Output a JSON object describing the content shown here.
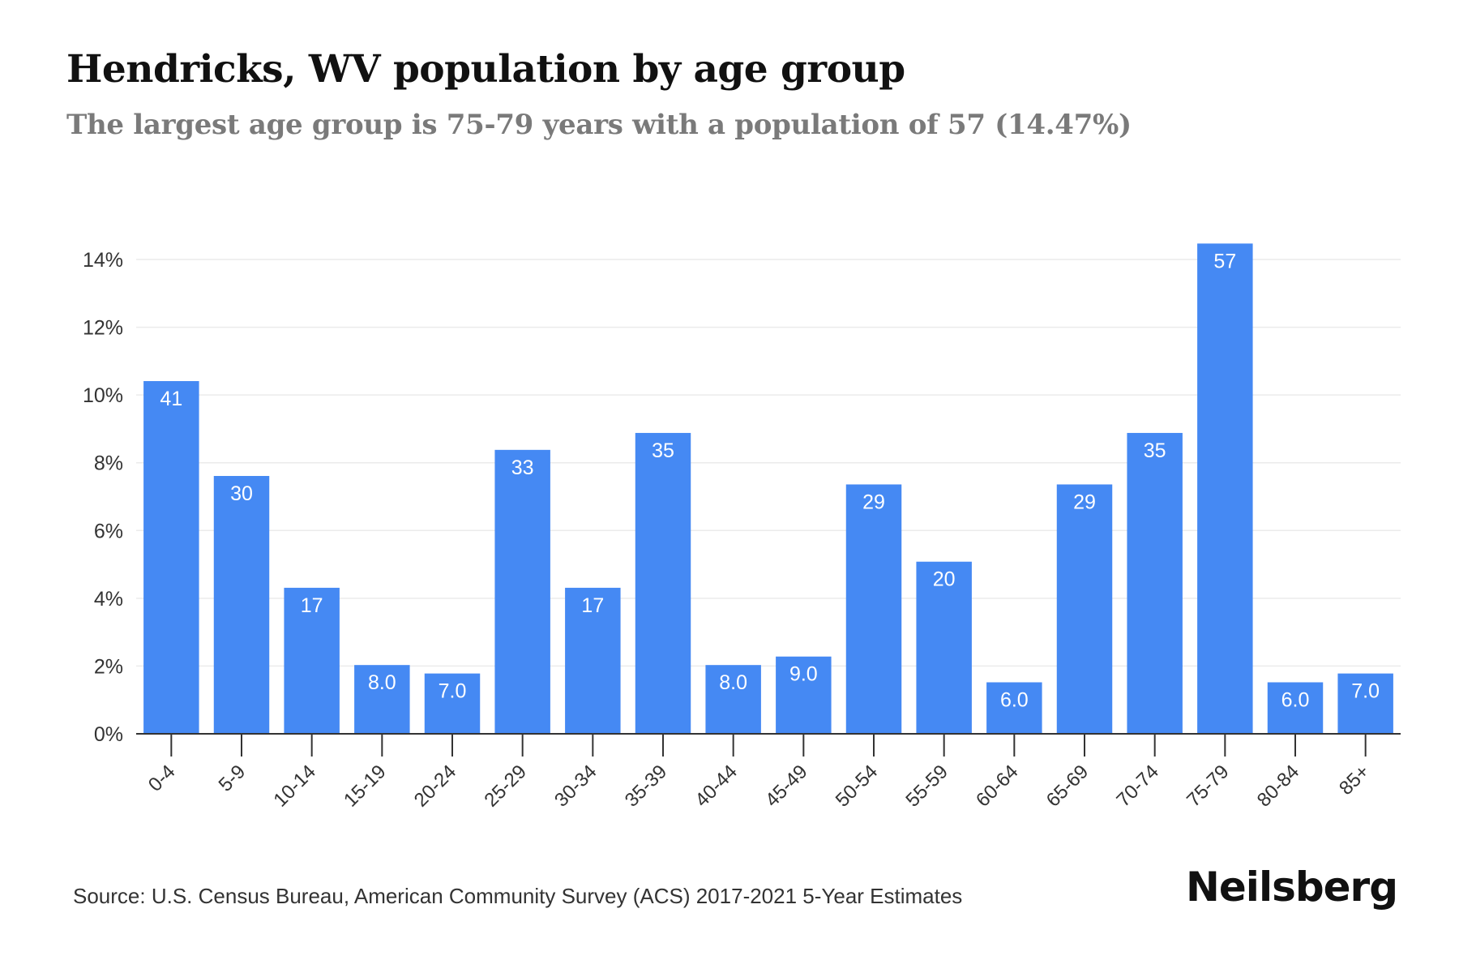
{
  "title": "Hendricks, WV population by age group",
  "subtitle": "The largest age group is 75-79 years with a population of 57 (14.47%)",
  "source": "Source: U.S. Census Bureau, American Community Survey (ACS) 2017-2021 5-Year Estimates",
  "brand": "Neilsberg",
  "colors": {
    "bar": "#4589f3",
    "label_on_bar": "#ffffff",
    "grid": "#ebebeb",
    "axis": "#333333"
  },
  "chart_data": {
    "type": "bar",
    "title": "Hendricks, WV population by age group",
    "xlabel": "",
    "ylabel": "",
    "ylim": [
      0,
      14
    ],
    "yticks": [
      0,
      2,
      4,
      6,
      8,
      10,
      12,
      14
    ],
    "ytick_labels": [
      "0%",
      "2%",
      "4%",
      "6%",
      "8%",
      "10%",
      "12%",
      "14%"
    ],
    "grid": true,
    "categories": [
      "0-4",
      "5-9",
      "10-14",
      "15-19",
      "20-24",
      "25-29",
      "30-34",
      "35-39",
      "40-44",
      "45-49",
      "50-54",
      "55-59",
      "60-64",
      "65-69",
      "70-74",
      "75-79",
      "80-84",
      "85+"
    ],
    "percent_values": [
      10.41,
      7.61,
      4.31,
      2.03,
      1.78,
      8.38,
      4.31,
      8.88,
      2.03,
      2.28,
      7.36,
      5.08,
      1.52,
      7.36,
      8.88,
      14.47,
      1.52,
      1.78
    ],
    "data_labels": [
      "41",
      "30",
      "17",
      "8.0",
      "7.0",
      "33",
      "17",
      "35",
      "8.0",
      "9.0",
      "29",
      "20",
      "6.0",
      "29",
      "35",
      "57",
      "6.0",
      "7.0"
    ]
  }
}
